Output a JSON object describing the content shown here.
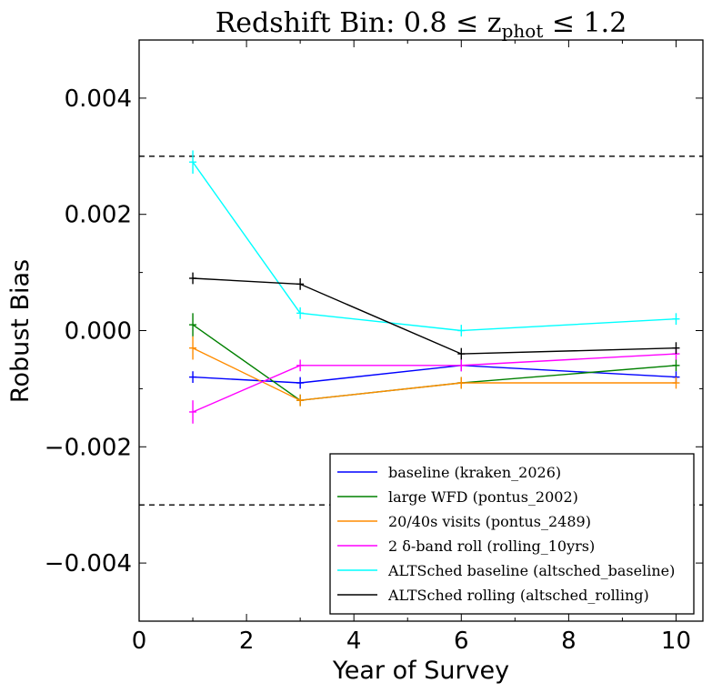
{
  "chart_data": {
    "type": "line",
    "title": "Redshift Bin: 0.8 ≤ z_phot ≤ 1.2",
    "title_parts": {
      "main": "Redshift Bin: 0.8 ≤ z",
      "sub": "phot",
      "tail": " ≤ 1.2"
    },
    "xlabel": "Year of Survey",
    "ylabel": "Robust Bias",
    "xlim": [
      0,
      10.5
    ],
    "ylim": [
      -0.005,
      0.005
    ],
    "xticks": [
      0,
      2,
      4,
      6,
      8,
      10
    ],
    "xtick_labels": [
      "0",
      "2",
      "4",
      "6",
      "8",
      "10"
    ],
    "yticks": [
      -0.004,
      -0.002,
      0.0,
      0.002,
      0.004
    ],
    "ytick_labels": [
      "−0.004",
      "−0.002",
      "0.000",
      "0.002",
      "0.004"
    ],
    "reference_lines": [
      0.003,
      -0.003
    ],
    "legend_position": "lower-right",
    "grid": false,
    "series": [
      {
        "name": "baseline (kraken_2026)",
        "color": "#0000ff",
        "x": [
          1,
          3,
          6,
          10
        ],
        "y": [
          -0.0008,
          -0.0009,
          -0.0006,
          -0.0008
        ],
        "err": [
          0.0001,
          0.0001,
          0.0001,
          0.0001
        ]
      },
      {
        "name": "large WFD (pontus_2002)",
        "color": "#008000",
        "x": [
          1,
          3,
          6,
          10
        ],
        "y": [
          0.0001,
          -0.0012,
          -0.0009,
          -0.0006
        ],
        "err": [
          0.0002,
          0.0001,
          0.0001,
          0.0001
        ]
      },
      {
        "name": "20/40s visits (pontus_2489)",
        "color": "#ff8c00",
        "x": [
          1,
          3,
          6,
          10
        ],
        "y": [
          -0.0003,
          -0.0012,
          -0.0009,
          -0.0009
        ],
        "err": [
          0.0002,
          0.0001,
          0.0001,
          0.0001
        ]
      },
      {
        "name": "2 δ-band roll (rolling_10yrs)",
        "color": "#ff00ff",
        "x": [
          1,
          3,
          6,
          10
        ],
        "y": [
          -0.0014,
          -0.0006,
          -0.0006,
          -0.0004
        ],
        "err": [
          0.0002,
          0.0001,
          0.0001,
          0.0001
        ]
      },
      {
        "name": "ALTSched baseline (altsched_baseline)",
        "color": "#00ffff",
        "x": [
          1,
          3,
          6,
          10
        ],
        "y": [
          0.0029,
          0.0003,
          0.0,
          0.0002
        ],
        "err": [
          0.0002,
          0.0001,
          0.0001,
          0.0001
        ]
      },
      {
        "name": "ALTSched rolling (altsched_rolling)",
        "color": "#000000",
        "x": [
          1,
          3,
          6,
          10
        ],
        "y": [
          0.0009,
          0.0008,
          -0.0004,
          -0.0003
        ],
        "err": [
          0.0001,
          0.0001,
          0.0001,
          0.0001
        ]
      }
    ]
  }
}
